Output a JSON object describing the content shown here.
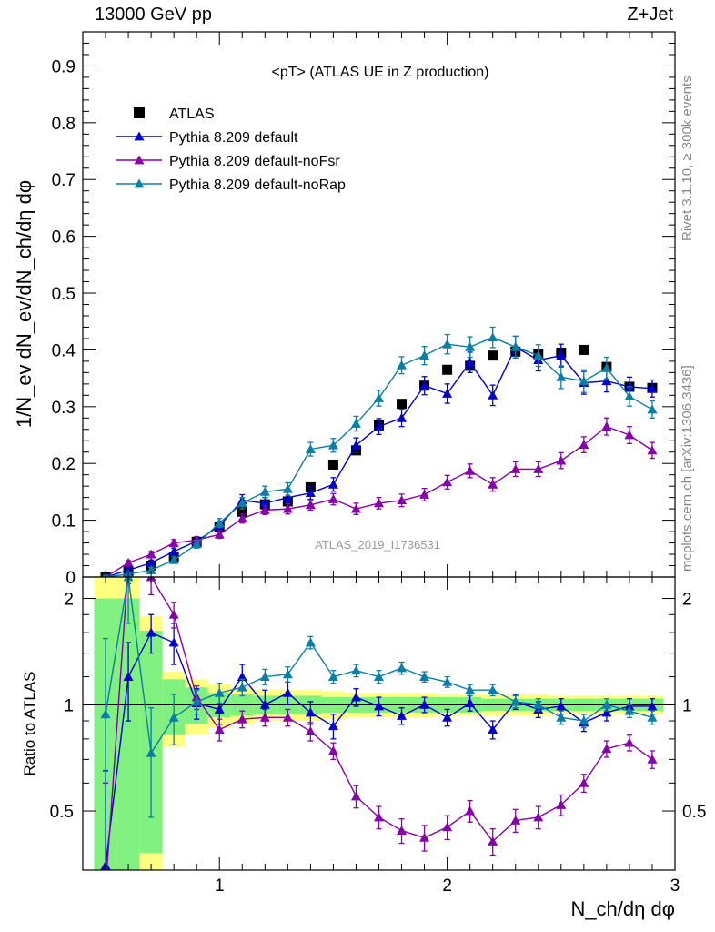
{
  "header": {
    "left": "13000 GeV pp",
    "right": "Z+Jet"
  },
  "side_labels": {
    "rivet": "Rivet 3.1.10, ≥ 300k events",
    "mcplots": "mcplots.cern.ch [arXiv:1306.3436]"
  },
  "chart_data": {
    "type": "scatter",
    "title": "<pT> (ATLAS UE in Z production)",
    "watermark": "ATLAS_2019_I1736531",
    "xlabel": "N_ch/dη dφ",
    "ylabel": "1/N_ev dN_ev/dN_ch/dη dφ",
    "ratio_ylabel": "Ratio to ATLAS",
    "xlim": [
      0.4,
      3.0
    ],
    "ylim": [
      0,
      0.96
    ],
    "ratio_ylim": [
      0.34,
      2.3
    ],
    "x_ticks": [
      1,
      2,
      3
    ],
    "y_ticks": [
      0,
      0.1,
      0.2,
      0.3,
      0.4,
      0.5,
      0.6,
      0.7,
      0.8,
      0.9
    ],
    "y_tick_labels": [
      "0",
      "0.1",
      "0.2",
      "0.3",
      "0.4",
      "0.5",
      "0.6",
      "0.7",
      "0.8",
      "0.9"
    ],
    "ratio_ticks": [
      0.5,
      1,
      2
    ],
    "ratio_tick_labels": [
      "0.5",
      "1",
      "2"
    ],
    "legend_position": "top-left",
    "x": [
      0.5,
      0.6,
      0.7,
      0.8,
      0.9,
      1.0,
      1.1,
      1.2,
      1.3,
      1.4,
      1.5,
      1.6,
      1.7,
      1.8,
      1.9,
      2.0,
      2.1,
      2.2,
      2.3,
      2.4,
      2.5,
      2.6,
      2.7,
      2.8,
      2.9
    ],
    "series": [
      {
        "name": "ATLAS",
        "marker": "square",
        "color": "#000000",
        "y": [
          0.0,
          0.01,
          0.02,
          0.035,
          0.062,
          0.088,
          0.115,
          0.128,
          0.133,
          0.158,
          0.198,
          0.223,
          0.268,
          0.305,
          0.337,
          0.365,
          0.372,
          0.39,
          0.397,
          0.393,
          0.395,
          0.4,
          0.37,
          0.335,
          0.333
        ],
        "yerr": [
          0.0,
          0.0,
          0.0,
          0.0,
          0.0,
          0.0,
          0.0,
          0.0,
          0.0,
          0.0,
          0.0,
          0.0,
          0.0,
          0.0,
          0.0,
          0.0,
          0.0,
          0.0,
          0.0,
          0.0,
          0.0,
          0.0,
          0.0,
          0.0,
          0.0
        ]
      },
      {
        "name": "Pythia 8.209 default",
        "marker": "triangle",
        "color": "#0000cc",
        "y": [
          0.0,
          0.012,
          0.025,
          0.045,
          0.063,
          0.09,
          0.135,
          0.13,
          0.14,
          0.148,
          0.163,
          0.232,
          0.265,
          0.28,
          0.337,
          0.323,
          0.378,
          0.32,
          0.405,
          0.382,
          0.39,
          0.342,
          0.345,
          0.335,
          0.332
        ],
        "yerr": [
          0.003,
          0.004,
          0.005,
          0.006,
          0.007,
          0.008,
          0.01,
          0.01,
          0.01,
          0.011,
          0.012,
          0.013,
          0.014,
          0.015,
          0.016,
          0.017,
          0.018,
          0.018,
          0.019,
          0.019,
          0.02,
          0.02,
          0.019,
          0.017,
          0.015
        ],
        "ratio": [
          0.35,
          1.2,
          1.6,
          1.5,
          1.01,
          0.97,
          1.2,
          1.0,
          1.08,
          0.95,
          0.87,
          1.05,
          0.99,
          0.93,
          1.0,
          0.92,
          1.01,
          0.85,
          1.02,
          0.97,
          0.99,
          0.89,
          0.95,
          0.99,
          0.99
        ],
        "ratio_err": [
          0.3,
          0.3,
          0.2,
          0.2,
          0.1,
          0.09,
          0.1,
          0.1,
          0.08,
          0.07,
          0.07,
          0.06,
          0.06,
          0.05,
          0.05,
          0.05,
          0.05,
          0.05,
          0.05,
          0.05,
          0.05,
          0.05,
          0.05,
          0.05,
          0.05
        ]
      },
      {
        "name": "Pythia 8.209 default-noFsr",
        "marker": "triangle",
        "color": "#8800aa",
        "y": [
          0.0,
          0.025,
          0.04,
          0.06,
          0.065,
          0.075,
          0.103,
          0.118,
          0.12,
          0.127,
          0.137,
          0.12,
          0.13,
          0.135,
          0.145,
          0.167,
          0.187,
          0.163,
          0.19,
          0.19,
          0.205,
          0.233,
          0.265,
          0.25,
          0.223
        ],
        "yerr": [
          0.003,
          0.004,
          0.005,
          0.006,
          0.006,
          0.007,
          0.008,
          0.008,
          0.009,
          0.009,
          0.01,
          0.01,
          0.01,
          0.011,
          0.011,
          0.012,
          0.012,
          0.012,
          0.013,
          0.013,
          0.014,
          0.014,
          0.015,
          0.015,
          0.014
        ],
        "ratio": [
          0.3,
          2.5,
          2.3,
          1.8,
          1.05,
          0.85,
          0.91,
          0.92,
          0.92,
          0.84,
          0.74,
          0.55,
          0.48,
          0.44,
          0.42,
          0.45,
          0.5,
          0.41,
          0.47,
          0.48,
          0.52,
          0.6,
          0.75,
          0.78,
          0.7
        ],
        "ratio_err": [
          0.3,
          0.3,
          0.25,
          0.15,
          0.08,
          0.06,
          0.05,
          0.05,
          0.05,
          0.05,
          0.04,
          0.04,
          0.035,
          0.035,
          0.035,
          0.035,
          0.035,
          0.035,
          0.035,
          0.035,
          0.035,
          0.035,
          0.04,
          0.04,
          0.04
        ]
      },
      {
        "name": "Pythia 8.209 default-noRap",
        "marker": "triangle",
        "color": "#0a7ea4",
        "y": [
          0.0,
          0.005,
          0.012,
          0.03,
          0.058,
          0.095,
          0.13,
          0.15,
          0.155,
          0.225,
          0.232,
          0.27,
          0.315,
          0.373,
          0.39,
          0.41,
          0.405,
          0.422,
          0.405,
          0.39,
          0.352,
          0.345,
          0.368,
          0.318,
          0.295
        ],
        "yerr": [
          0.003,
          0.004,
          0.005,
          0.006,
          0.007,
          0.008,
          0.01,
          0.01,
          0.011,
          0.012,
          0.012,
          0.013,
          0.014,
          0.015,
          0.016,
          0.017,
          0.018,
          0.018,
          0.019,
          0.019,
          0.02,
          0.02,
          0.019,
          0.017,
          0.015
        ],
        "ratio": [
          0.94,
          2.3,
          0.73,
          0.92,
          1.02,
          1.08,
          1.12,
          1.2,
          1.22,
          1.5,
          1.2,
          1.25,
          1.2,
          1.27,
          1.2,
          1.16,
          1.1,
          1.1,
          1.02,
          1.0,
          0.92,
          0.9,
          1.0,
          0.96,
          0.92
        ],
        "ratio_err": [
          0.6,
          0.6,
          0.25,
          0.15,
          0.08,
          0.07,
          0.06,
          0.06,
          0.06,
          0.06,
          0.05,
          0.05,
          0.05,
          0.05,
          0.04,
          0.04,
          0.04,
          0.04,
          0.04,
          0.04,
          0.04,
          0.04,
          0.04,
          0.04,
          0.04
        ]
      }
    ],
    "ratio_bands": {
      "bin_edges": [
        0.45,
        0.55,
        0.65,
        0.75,
        0.85,
        0.95,
        1.05,
        1.15,
        1.25,
        1.35,
        1.45,
        1.55,
        1.65,
        1.75,
        1.85,
        1.95,
        2.05,
        2.15,
        2.25,
        2.35,
        2.45,
        2.55,
        2.65,
        2.75,
        2.85,
        2.95
      ],
      "inner_halfwidth": [
        1.0,
        1.0,
        0.62,
        0.18,
        0.12,
        0.08,
        0.07,
        0.06,
        0.06,
        0.06,
        0.05,
        0.05,
        0.05,
        0.05,
        0.05,
        0.05,
        0.05,
        0.04,
        0.04,
        0.04,
        0.04,
        0.04,
        0.04,
        0.04,
        0.04
      ],
      "outer_halfwidth": [
        1.6,
        1.6,
        0.78,
        0.24,
        0.18,
        0.14,
        0.12,
        0.1,
        0.1,
        0.1,
        0.09,
        0.08,
        0.08,
        0.08,
        0.08,
        0.07,
        0.07,
        0.07,
        0.07,
        0.07,
        0.06,
        0.06,
        0.06,
        0.06,
        0.06
      ],
      "inner_color": "#80f080",
      "outer_color": "#ffff80"
    }
  }
}
